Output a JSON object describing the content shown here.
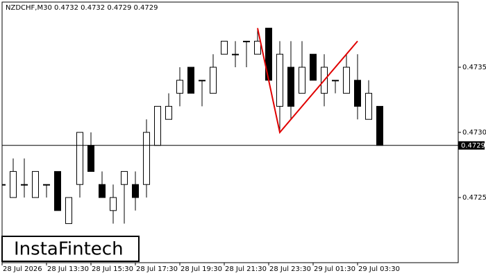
{
  "chart_data": {
    "type": "candlestick",
    "title": "NZDCHF,M30  0.4732 0.4732 0.4729 0.4729",
    "categories": [
      "28 Jul 2026",
      null,
      null,
      null,
      "28 Jul 13:30",
      null,
      null,
      null,
      "28 Jul 15:30",
      null,
      null,
      null,
      "28 Jul 17:30",
      null,
      null,
      null,
      "28 Jul 19:30",
      null,
      null,
      null,
      "28 Jul 21:30",
      null,
      null,
      null,
      "28 Jul 23:30",
      null,
      null,
      null,
      "29 Jul 01:30",
      null,
      null,
      null,
      "29 Jul 03:30",
      null,
      null
    ],
    "open": [
      0.4726,
      0.4725,
      0.4726,
      0.4725,
      0.4726,
      0.4727,
      0.4723,
      0.4726,
      0.4729,
      0.4726,
      0.4724,
      0.4726,
      0.4726,
      0.4726,
      0.4729,
      0.4731,
      0.4733,
      0.4735,
      0.4734,
      0.4733,
      0.4736,
      0.4736,
      0.4737,
      0.4736,
      0.4738,
      0.4732,
      0.4735,
      0.4733,
      0.4736,
      0.4733,
      0.4734,
      0.4733,
      0.4734,
      0.4731,
      0.4732
    ],
    "high": [
      0.4728,
      0.4728,
      0.4728,
      0.4727,
      0.4726,
      0.4727,
      0.4725,
      0.473,
      0.473,
      0.4727,
      0.4726,
      0.4727,
      0.4727,
      0.4731,
      0.4732,
      0.4733,
      0.4735,
      0.4735,
      0.4734,
      0.4736,
      0.4737,
      0.4737,
      0.4737,
      0.4738,
      0.4738,
      0.4737,
      0.4737,
      0.4737,
      0.4736,
      0.4736,
      0.4734,
      0.4736,
      0.4736,
      0.4734,
      0.4732
    ],
    "low": [
      0.4725,
      0.4725,
      0.4725,
      0.4725,
      0.4725,
      0.4724,
      0.4723,
      0.4725,
      0.4727,
      0.4725,
      0.4723,
      0.4723,
      0.4724,
      0.4725,
      0.4729,
      0.4731,
      0.4732,
      0.4733,
      0.4732,
      0.4733,
      0.4736,
      0.4735,
      0.4735,
      0.4736,
      0.4734,
      0.473,
      0.4731,
      0.4733,
      0.4734,
      0.4732,
      0.4733,
      0.4733,
      0.4731,
      0.4731,
      0.4729
    ],
    "close": [
      0.4726,
      0.4727,
      0.4726,
      0.4727,
      0.4726,
      0.4724,
      0.4725,
      0.473,
      0.4727,
      0.4725,
      0.4725,
      0.4727,
      0.4725,
      0.473,
      0.4732,
      0.4732,
      0.4734,
      0.4733,
      0.4734,
      0.4735,
      0.4737,
      0.4736,
      0.4737,
      0.4737,
      0.4734,
      0.4736,
      0.4732,
      0.4735,
      0.4734,
      0.4735,
      0.4734,
      0.4735,
      0.4732,
      0.4733,
      0.4729
    ],
    "ylim": [
      0.472,
      0.474
    ],
    "yticks": [
      0.4725,
      {
        "value": 0.473,
        "label": "0.4730"
      },
      0.4735
    ],
    "current_price": 0.4729,
    "pattern": {
      "color": "#e00000",
      "index": [
        23,
        25,
        32
      ],
      "values": [
        0.4738,
        0.473,
        0.4737
      ]
    },
    "logo": "InstaFintech"
  }
}
